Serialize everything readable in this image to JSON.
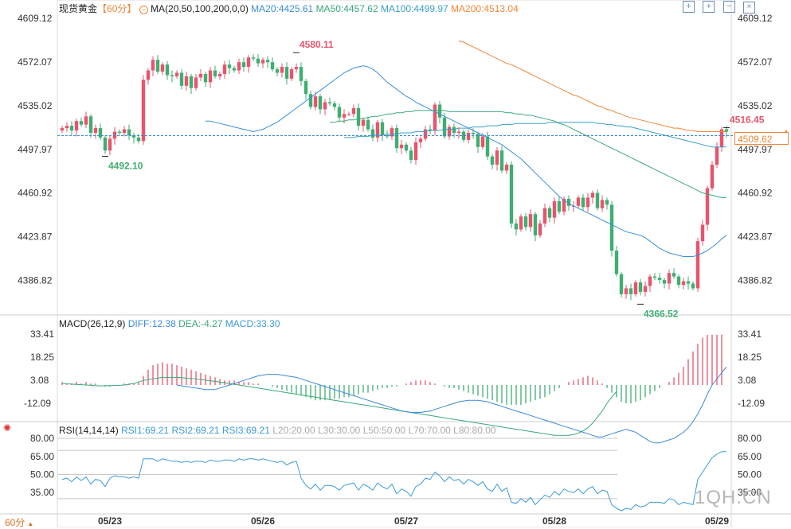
{
  "header": {
    "symbol": "现货黄金",
    "period": "【60分】",
    "ma_text": "MA(20,50,100,200,0,0)",
    "ma_values": [
      {
        "label": "MA20:4425.61",
        "color": "#3c8fd8"
      },
      {
        "label": "MA50:4457.62",
        "color": "#3aa87a"
      },
      {
        "label": "MA100:4499.97",
        "color": "#3aa0c8"
      },
      {
        "label": "MA200:4513.04",
        "color": "#f0883a"
      }
    ]
  },
  "macd_header": {
    "name": "MACD(26,12,9)",
    "diff": "DIFF:12.38",
    "dea": "DEA:-4.27",
    "macd": "MACD:33.30"
  },
  "rsi_header": {
    "name": "RSI(14,14,14)",
    "rsi1": "RSI1:69.21",
    "rsi2": "RSI2:69.21",
    "rsi3": "RSI3:69.21",
    "l20": "L20:20.00",
    "l30": "L30:30.00",
    "l50": "L50:50.00",
    "l70": "L70:70.00",
    "l80": "L80:80.00"
  },
  "period_button": "60分",
  "watermark": "1QH.CN",
  "colors": {
    "up": "#e8546c",
    "down": "#3fae72",
    "ma20": "#3c8fd8",
    "ma50": "#3aa87a",
    "ma100": "#3aa0c8",
    "ma200": "#f0883a",
    "rsi": "#3a9ad8",
    "dea": "#3aa87a",
    "diff": "#3a8ad8"
  },
  "chart_data": {
    "type": "candlestick",
    "price_ticks": [
      "4609.12",
      "4572.07",
      "4535.02",
      "4497.97",
      "4460.92",
      "4423.87",
      "4386.82"
    ],
    "macd_ticks": [
      "33.41",
      "18.25",
      "3.08",
      "-12.09"
    ],
    "rsi_ticks": [
      "80.00",
      "65.00",
      "50.00",
      "35.00"
    ],
    "date_labels": [
      "05/23",
      "05/26",
      "05/27",
      "05/28",
      "05/29"
    ],
    "date_index": [
      10,
      42,
      72,
      103,
      137
    ],
    "price_range": [
      4358,
      4614
    ],
    "last_price": "4509.62",
    "annotations": [
      {
        "text": "4580.11",
        "i": 49,
        "price": 4580.11,
        "kind": "high"
      },
      {
        "text": "4492.10",
        "i": 9,
        "price": 4492.1,
        "kind": "low"
      },
      {
        "text": "4366.52",
        "i": 121,
        "price": 4366.52,
        "kind": "low"
      },
      {
        "text": "4516.45",
        "i": 139,
        "price": 4516.45,
        "kind": "high"
      }
    ],
    "closes": [
      4516,
      4518,
      4514,
      4522,
      4519,
      4526,
      4512,
      4516,
      4508,
      4497,
      4507,
      4513,
      4512,
      4515,
      4510,
      4508,
      4505,
      4557,
      4565,
      4574,
      4564,
      4570,
      4561,
      4560,
      4563,
      4552,
      4560,
      4550,
      4559,
      4562,
      4555,
      4565,
      4560,
      4562,
      4570,
      4567,
      4565,
      4572,
      4568,
      4576,
      4575,
      4571,
      4574,
      4572,
      4566,
      4563,
      4568,
      4558,
      4566,
      4568,
      4556,
      4545,
      4534,
      4543,
      4532,
      4538,
      4537,
      4534,
      4525,
      4528,
      4528,
      4533,
      4518,
      4523,
      4515,
      4508,
      4521,
      4510,
      4509,
      4516,
      4499,
      4502,
      4497,
      4489,
      4504,
      4507,
      4515,
      4514,
      4536,
      4525,
      4509,
      4517,
      4512,
      4513,
      4506,
      4512,
      4511,
      4500,
      4509,
      4492,
      4485,
      4497,
      4480,
      4485,
      4435,
      4430,
      4441,
      4432,
      4443,
      4425,
      4435,
      4448,
      4440,
      4454,
      4445,
      4456,
      4450,
      4450,
      4457,
      4449,
      4457,
      4461,
      4448,
      4455,
      4451,
      4412,
      4392,
      4375,
      4380,
      4375,
      4385,
      4377,
      4382,
      4390,
      4389,
      4387,
      4384,
      4393,
      4390,
      4383,
      4386,
      4384,
      4380,
      4420,
      4434,
      4465,
      4485,
      4500,
      4515,
      4513
    ],
    "ma20": [
      4522,
      4522,
      4521,
      4520,
      4519,
      4518,
      4517,
      4516,
      4515,
      4514,
      4513,
      4514,
      4515,
      4517,
      4519,
      4521,
      4524,
      4527,
      4530,
      4533,
      4536,
      4539,
      4542,
      4545,
      4548,
      4551,
      4554,
      4557,
      4560,
      4563,
      4565,
      4567,
      4568,
      4569,
      4568,
      4566,
      4563,
      4559,
      4555,
      4552,
      4549,
      4546,
      4543,
      4541,
      4538,
      4536,
      4534,
      4532,
      4530,
      4528,
      4526,
      4524,
      4522,
      4520,
      4518,
      4516,
      4514,
      4512,
      4510,
      4508,
      4506,
      4504,
      4502,
      4499,
      4496,
      4493,
      4490,
      4486,
      4482,
      4478,
      4474,
      4470,
      4466,
      4462,
      4458,
      4455,
      4452,
      4450,
      4448,
      4446,
      4444,
      4442,
      4440,
      4438,
      4436,
      4434,
      4432,
      4430,
      4428,
      4427,
      4426,
      4425,
      4423,
      4420,
      4417,
      4414,
      4412,
      4410,
      4409,
      4408,
      4407,
      4407,
      4407,
      4408,
      4410,
      4412,
      4415,
      4418,
      4422,
      4425
    ],
    "ma50": [
      4521,
      4521,
      4522,
      4522,
      4523,
      4523,
      4524,
      4524,
      4525,
      4526,
      4526,
      4527,
      4528,
      4528,
      4529,
      4529,
      4530,
      4530,
      4531,
      4531,
      4531,
      4531,
      4531,
      4531,
      4531,
      4530,
      4530,
      4530,
      4530,
      4530,
      4530,
      4530,
      4530,
      4530,
      4530,
      4530,
      4530,
      4529,
      4529,
      4528,
      4528,
      4527,
      4527,
      4526,
      4525,
      4524,
      4523,
      4522,
      4520,
      4519,
      4517,
      4515,
      4513,
      4511,
      4509,
      4507,
      4505,
      4503,
      4501,
      4499,
      4497,
      4495,
      4493,
      4491,
      4489,
      4487,
      4485,
      4483,
      4481,
      4479,
      4477,
      4475,
      4473,
      4471,
      4469,
      4467,
      4465,
      4463,
      4461,
      4460,
      4459,
      4458,
      4457,
      4457
    ],
    "ma100": [
      4508,
      4508,
      4508,
      4509,
      4509,
      4509,
      4510,
      4510,
      4510,
      4511,
      4511,
      4511,
      4512,
      4512,
      4512,
      4513,
      4513,
      4513,
      4514,
      4514,
      4514,
      4515,
      4515,
      4515,
      4516,
      4516,
      4516,
      4517,
      4517,
      4517,
      4518,
      4518,
      4518,
      4519,
      4519,
      4519,
      4520,
      4520,
      4520,
      4520,
      4520,
      4520,
      4520,
      4521,
      4521,
      4521,
      4521,
      4521,
      4521,
      4521,
      4521,
      4521,
      4521,
      4520,
      4520,
      4519,
      4519,
      4518,
      4518,
      4517,
      4517,
      4516,
      4515,
      4514,
      4513,
      4512,
      4511,
      4510,
      4509,
      4508,
      4507,
      4506,
      4505,
      4504,
      4503,
      4502,
      4501,
      4500,
      4500,
      4500,
      4500
    ],
    "ma200": [
      4590,
      4589,
      4587,
      4585,
      4583,
      4581,
      4579,
      4577,
      4575,
      4573,
      4571,
      4570,
      4568,
      4566,
      4564,
      4562,
      4560,
      4558,
      4556,
      4554,
      4552,
      4550,
      4548,
      4546,
      4544,
      4543,
      4541,
      4539,
      4537,
      4535,
      4534,
      4532,
      4531,
      4529,
      4528,
      4526,
      4525,
      4524,
      4523,
      4522,
      4521,
      4520,
      4519,
      4518,
      4517,
      4516,
      4516,
      4515,
      4514,
      4514,
      4513,
      4513,
      4513,
      4513,
      4513,
      4513,
      4513
    ],
    "macd_hist": [
      2,
      1,
      1,
      2,
      1,
      2,
      1,
      1,
      0,
      -1,
      -1,
      0,
      0,
      1,
      1,
      1,
      2,
      6,
      10,
      13,
      14,
      15,
      14,
      14,
      13,
      12,
      11,
      10,
      9,
      8,
      7,
      6,
      5,
      4,
      3,
      3,
      3,
      2,
      2,
      2,
      1,
      1,
      0,
      0,
      -1,
      -2,
      -3,
      -4,
      -5,
      -6,
      -7,
      -8,
      -9,
      -10,
      -10,
      -10,
      -10,
      -9,
      -9,
      -8,
      -8,
      -7,
      -6,
      -5,
      -5,
      -4,
      -3,
      -2,
      -2,
      -1,
      -1,
      0,
      1,
      2,
      3,
      3,
      3,
      2,
      1,
      0,
      -1,
      -2,
      -2,
      -3,
      -4,
      -5,
      -6,
      -7,
      -8,
      -9,
      -10,
      -11,
      -12,
      -13,
      -13,
      -13,
      -13,
      -12,
      -11,
      -10,
      -9,
      -8,
      -6,
      -4,
      -2,
      0,
      2,
      3,
      4,
      5,
      6,
      5,
      3,
      1,
      -2,
      -5,
      -8,
      -11,
      -12,
      -12,
      -11,
      -10,
      -8,
      -6,
      -4,
      -2,
      0,
      2,
      5,
      8,
      12,
      17,
      22,
      27,
      31,
      33,
      33,
      33,
      33
    ],
    "macd_diff": [
      0,
      -0.5,
      -1,
      -1.5,
      -2,
      -2.5,
      -3,
      -3,
      -3,
      -2,
      -1,
      0,
      1,
      2,
      3,
      4,
      5,
      6,
      6.5,
      7,
      7,
      7,
      6.5,
      6,
      5.5,
      5,
      4,
      3,
      2,
      1,
      0,
      -1,
      -2,
      -3,
      -4,
      -5,
      -6,
      -7,
      -8,
      -9,
      -10,
      -11,
      -12,
      -13,
      -14,
      -15,
      -16,
      -17,
      -17.5,
      -18,
      -18,
      -18,
      -17.5,
      -17,
      -16,
      -15,
      -14,
      -13,
      -12,
      -11,
      -10.5,
      -10,
      -10,
      -10,
      -10.5,
      -11,
      -12,
      -13,
      -14,
      -15,
      -16,
      -17,
      -18,
      -19,
      -20,
      -21,
      -22,
      -23,
      -24,
      -25,
      -26,
      -27,
      -28,
      -29,
      -30,
      -31,
      -32,
      -33,
      -34,
      -34,
      -33,
      -32,
      -31,
      -30,
      -29,
      -30,
      -31,
      -33,
      -35,
      -37,
      -38,
      -38,
      -37,
      -36,
      -35,
      -33,
      -31,
      -28,
      -24,
      -19,
      -13,
      -6,
      0,
      4,
      8,
      12
    ],
    "macd_dea": [
      1,
      0.8,
      0.6,
      0.4,
      0.2,
      0,
      -0.2,
      -0.4,
      -0.5,
      -0.5,
      -0.4,
      -0.3,
      -0.2,
      0,
      0.5,
      1,
      2,
      3,
      3.5,
      4,
      4.5,
      5,
      5,
      5,
      5,
      4.8,
      4.5,
      4.2,
      4,
      3.6,
      3.2,
      2.8,
      2.4,
      2,
      1.5,
      1,
      0.5,
      0,
      -0.5,
      -1,
      -1.5,
      -2,
      -2.5,
      -3,
      -3.5,
      -4,
      -4.5,
      -5,
      -5.5,
      -6,
      -6.5,
      -7,
      -7.5,
      -8,
      -8.5,
      -9,
      -9.5,
      -10,
      -10.5,
      -11,
      -11.5,
      -12,
      -12.5,
      -13,
      -13.5,
      -14,
      -14.5,
      -15,
      -15.5,
      -16,
      -16.5,
      -17,
      -17.5,
      -18,
      -18.5,
      -19,
      -19.5,
      -20,
      -20.5,
      -21,
      -21.5,
      -22,
      -22.5,
      -23,
      -23.5,
      -24,
      -24.5,
      -25,
      -25.5,
      -26,
      -26.5,
      -27,
      -27.5,
      -28,
      -28.5,
      -29,
      -29.5,
      -30,
      -30.5,
      -31,
      -31.5,
      -32,
      -32.5,
      -33,
      -33,
      -33,
      -33,
      -32.5,
      -31.5,
      -30,
      -28,
      -25,
      -21,
      -17,
      -12,
      -8,
      -4.27
    ],
    "rsi": [
      46,
      47,
      44,
      48,
      45,
      48,
      42,
      46,
      45,
      40,
      47,
      49,
      48,
      48,
      47,
      48,
      47,
      63,
      63,
      63,
      61,
      63,
      62,
      61,
      61,
      60,
      61,
      60,
      61,
      61,
      60,
      62,
      61,
      61,
      62,
      62,
      61,
      63,
      62,
      63,
      63,
      62,
      63,
      62,
      61,
      60,
      61,
      58,
      60,
      61,
      47,
      41,
      38,
      42,
      37,
      41,
      41,
      40,
      37,
      41,
      42,
      43,
      37,
      42,
      40,
      37,
      43,
      40,
      38,
      42,
      34,
      38,
      36,
      32,
      40,
      42,
      47,
      46,
      52,
      49,
      44,
      48,
      45,
      46,
      42,
      46,
      44,
      41,
      44,
      38,
      36,
      42,
      36,
      39,
      27,
      26,
      30,
      27,
      31,
      25,
      29,
      33,
      31,
      36,
      33,
      38,
      36,
      35,
      38,
      34,
      38,
      40,
      34,
      37,
      36,
      25,
      22,
      20,
      22,
      21,
      25,
      23,
      24,
      27,
      27,
      27,
      26,
      30,
      29,
      25,
      27,
      26,
      25,
      46,
      52,
      58,
      64,
      67,
      69,
      69
    ]
  }
}
